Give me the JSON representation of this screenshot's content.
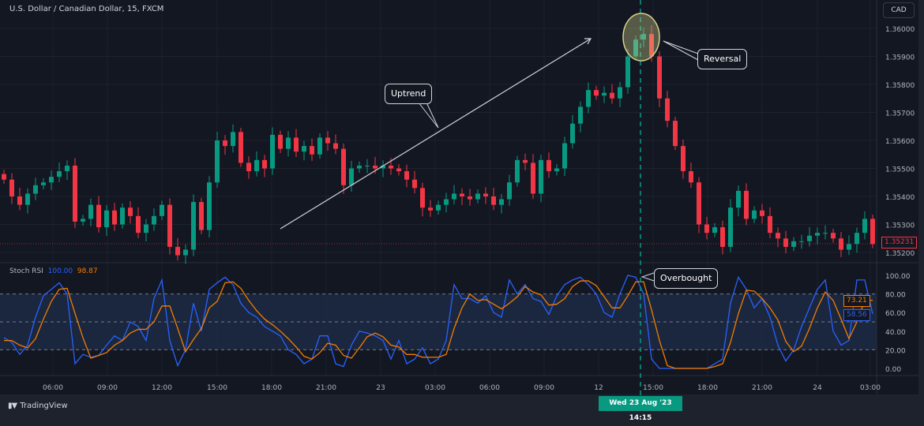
{
  "header": {
    "symbol": "U.S. Dollar / Canadian Dollar, 15, FXCM",
    "currency_button": "CAD"
  },
  "colors": {
    "background": "#131722",
    "up": "#089981",
    "down": "#f23645",
    "k_line": "#2962ff",
    "d_line": "#f57c00",
    "crosshair": "#089981"
  },
  "annotations": {
    "uptrend": "Uptrend",
    "reversal": "Reversal",
    "overbought": "Overbought"
  },
  "crosshair": {
    "label": "Wed 23 Aug '23   14:15"
  },
  "footer": {
    "brand": "TradingView"
  },
  "chart_data": [
    {
      "type": "candlestick",
      "title": "U.S. Dollar / Canadian Dollar, 15, FXCM",
      "y_ticks": [
        "1.36000",
        "1.35900",
        "1.35800",
        "1.35700",
        "1.35600",
        "1.35500",
        "1.35400",
        "1.35300",
        "1.35200"
      ],
      "ylim": [
        1.3517,
        1.3609
      ],
      "last_price": "1.35231",
      "x_ticks": [
        "06:00",
        "09:00",
        "12:00",
        "15:00",
        "18:00",
        "21:00",
        "23",
        "03:00",
        "06:00",
        "09:00",
        "12",
        "15:00",
        "18:00",
        "21:00",
        "24",
        "03:00"
      ],
      "grid": true,
      "closes": [
        1.3546,
        1.354,
        1.3537,
        1.3541,
        1.3544,
        1.3545,
        1.3547,
        1.3549,
        1.3551,
        1.3531,
        1.3532,
        1.3537,
        1.3529,
        1.3535,
        1.353,
        1.3536,
        1.3533,
        1.3527,
        1.353,
        1.3533,
        1.3537,
        1.3522,
        1.3519,
        1.3521,
        1.3538,
        1.3528,
        1.3545,
        1.356,
        1.3558,
        1.3563,
        1.3552,
        1.3549,
        1.3553,
        1.355,
        1.3562,
        1.3557,
        1.3561,
        1.3556,
        1.3558,
        1.3555,
        1.3561,
        1.3559,
        1.3557,
        1.3544,
        1.355,
        1.3551,
        1.3551,
        1.355,
        1.3551,
        1.355,
        1.3549,
        1.3546,
        1.3543,
        1.3536,
        1.3535,
        1.3537,
        1.3539,
        1.3541,
        1.354,
        1.3539,
        1.3541,
        1.354,
        1.3537,
        1.3539,
        1.3545,
        1.3553,
        1.3552,
        1.3541,
        1.3553,
        1.3549,
        1.355,
        1.3559,
        1.3566,
        1.3572,
        1.3578,
        1.3576,
        1.3577,
        1.3575,
        1.3579,
        1.359,
        1.3596,
        1.3598,
        1.359,
        1.3575,
        1.3567,
        1.3558,
        1.3549,
        1.3545,
        1.353,
        1.3527,
        1.3529,
        1.3522,
        1.3536,
        1.3542,
        1.3532,
        1.3535,
        1.3533,
        1.3527,
        1.3525,
        1.3522,
        1.3524,
        1.3524,
        1.3526,
        1.3527,
        1.3527,
        1.3525,
        1.3521,
        1.3523,
        1.3527,
        1.3532,
        1.3523
      ]
    },
    {
      "type": "line",
      "title": "Stoch RSI",
      "header_values": {
        "k": "100.00",
        "d": "98.87"
      },
      "y_ticks": [
        "100.00",
        "80.00",
        "60.00",
        "40.00",
        "20.00",
        "0.00"
      ],
      "ylim": [
        0,
        100
      ],
      "bands": {
        "upper": 80,
        "middle": 50,
        "lower": 20
      },
      "last_values": {
        "k": "58.56",
        "d": "73.21"
      },
      "series": [
        {
          "name": "K",
          "values": [
            33,
            28,
            15,
            25,
            55,
            78,
            85,
            92,
            80,
            5,
            15,
            12,
            14,
            25,
            35,
            30,
            50,
            45,
            30,
            75,
            95,
            30,
            3,
            20,
            70,
            40,
            85,
            92,
            98,
            90,
            70,
            60,
            55,
            45,
            40,
            35,
            20,
            15,
            5,
            10,
            35,
            35,
            5,
            2,
            25,
            40,
            38,
            35,
            30,
            10,
            30,
            5,
            10,
            22,
            5,
            10,
            30,
            90,
            75,
            75,
            70,
            78,
            60,
            55,
            95,
            80,
            90,
            75,
            72,
            58,
            78,
            90,
            95,
            98,
            90,
            80,
            60,
            55,
            80,
            100,
            98,
            80,
            10,
            0,
            0,
            0,
            0,
            0,
            0,
            0,
            5,
            10,
            70,
            98,
            85,
            65,
            75,
            55,
            25,
            8,
            20,
            45,
            65,
            85,
            95,
            40,
            25,
            30,
            95,
            95,
            58.56
          ]
        },
        {
          "name": "D",
          "values": [
            30,
            30,
            25,
            22,
            32,
            53,
            72,
            85,
            86,
            59,
            33,
            11,
            14,
            17,
            25,
            30,
            38,
            42,
            42,
            50,
            67,
            67,
            43,
            18,
            31,
            43,
            65,
            72,
            92,
            93,
            86,
            73,
            62,
            53,
            47,
            40,
            32,
            23,
            13,
            10,
            17,
            27,
            25,
            14,
            11,
            22,
            34,
            38,
            34,
            25,
            23,
            15,
            15,
            12,
            12,
            12,
            15,
            43,
            65,
            80,
            73,
            74,
            69,
            64,
            70,
            77,
            88,
            82,
            79,
            68,
            69,
            75,
            88,
            94,
            94,
            89,
            77,
            65,
            65,
            78,
            93,
            93,
            63,
            30,
            3,
            0,
            0,
            0,
            0,
            0,
            2,
            5,
            28,
            59,
            84,
            83,
            75,
            65,
            52,
            29,
            18,
            24,
            43,
            65,
            82,
            73,
            53,
            32,
            50,
            73,
            73.21
          ]
        }
      ]
    }
  ]
}
